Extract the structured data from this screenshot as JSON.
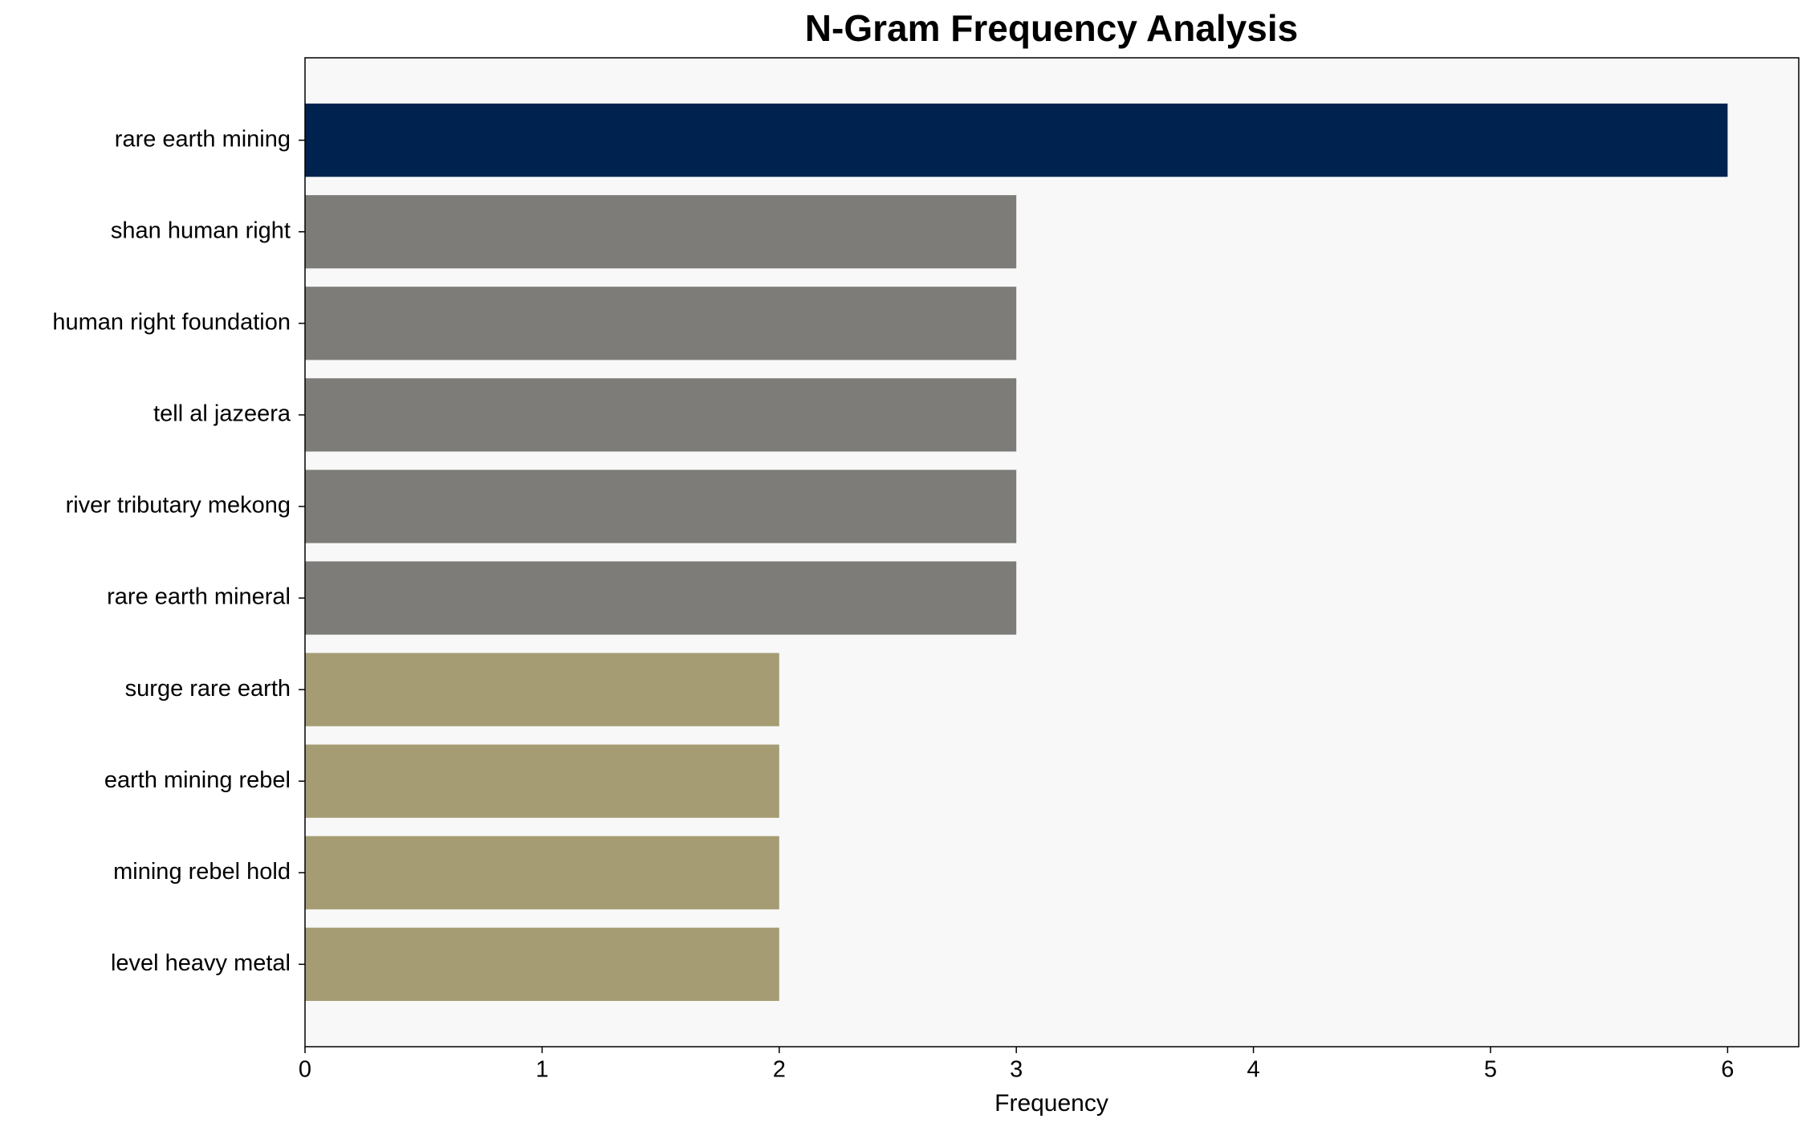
{
  "chart_data": {
    "type": "barh",
    "title": "N-Gram Frequency Analysis",
    "xlabel": "Frequency",
    "categories": [
      "rare earth mining",
      "shan human right",
      "human right foundation",
      "tell al jazeera",
      "river tributary mekong",
      "rare earth mineral",
      "surge rare earth",
      "earth mining rebel",
      "mining rebel hold",
      "level heavy metal"
    ],
    "values": [
      6,
      3,
      3,
      3,
      3,
      3,
      2,
      2,
      2,
      2
    ],
    "colors": [
      "#00224e",
      "#7d7c78",
      "#7d7c78",
      "#7d7c78",
      "#7d7c78",
      "#7d7c78",
      "#a59c74",
      "#a59c74",
      "#a59c74",
      "#a59c74"
    ],
    "xlim": [
      0,
      6.3
    ],
    "xticks": [
      0,
      1,
      2,
      3,
      4,
      5,
      6
    ]
  }
}
